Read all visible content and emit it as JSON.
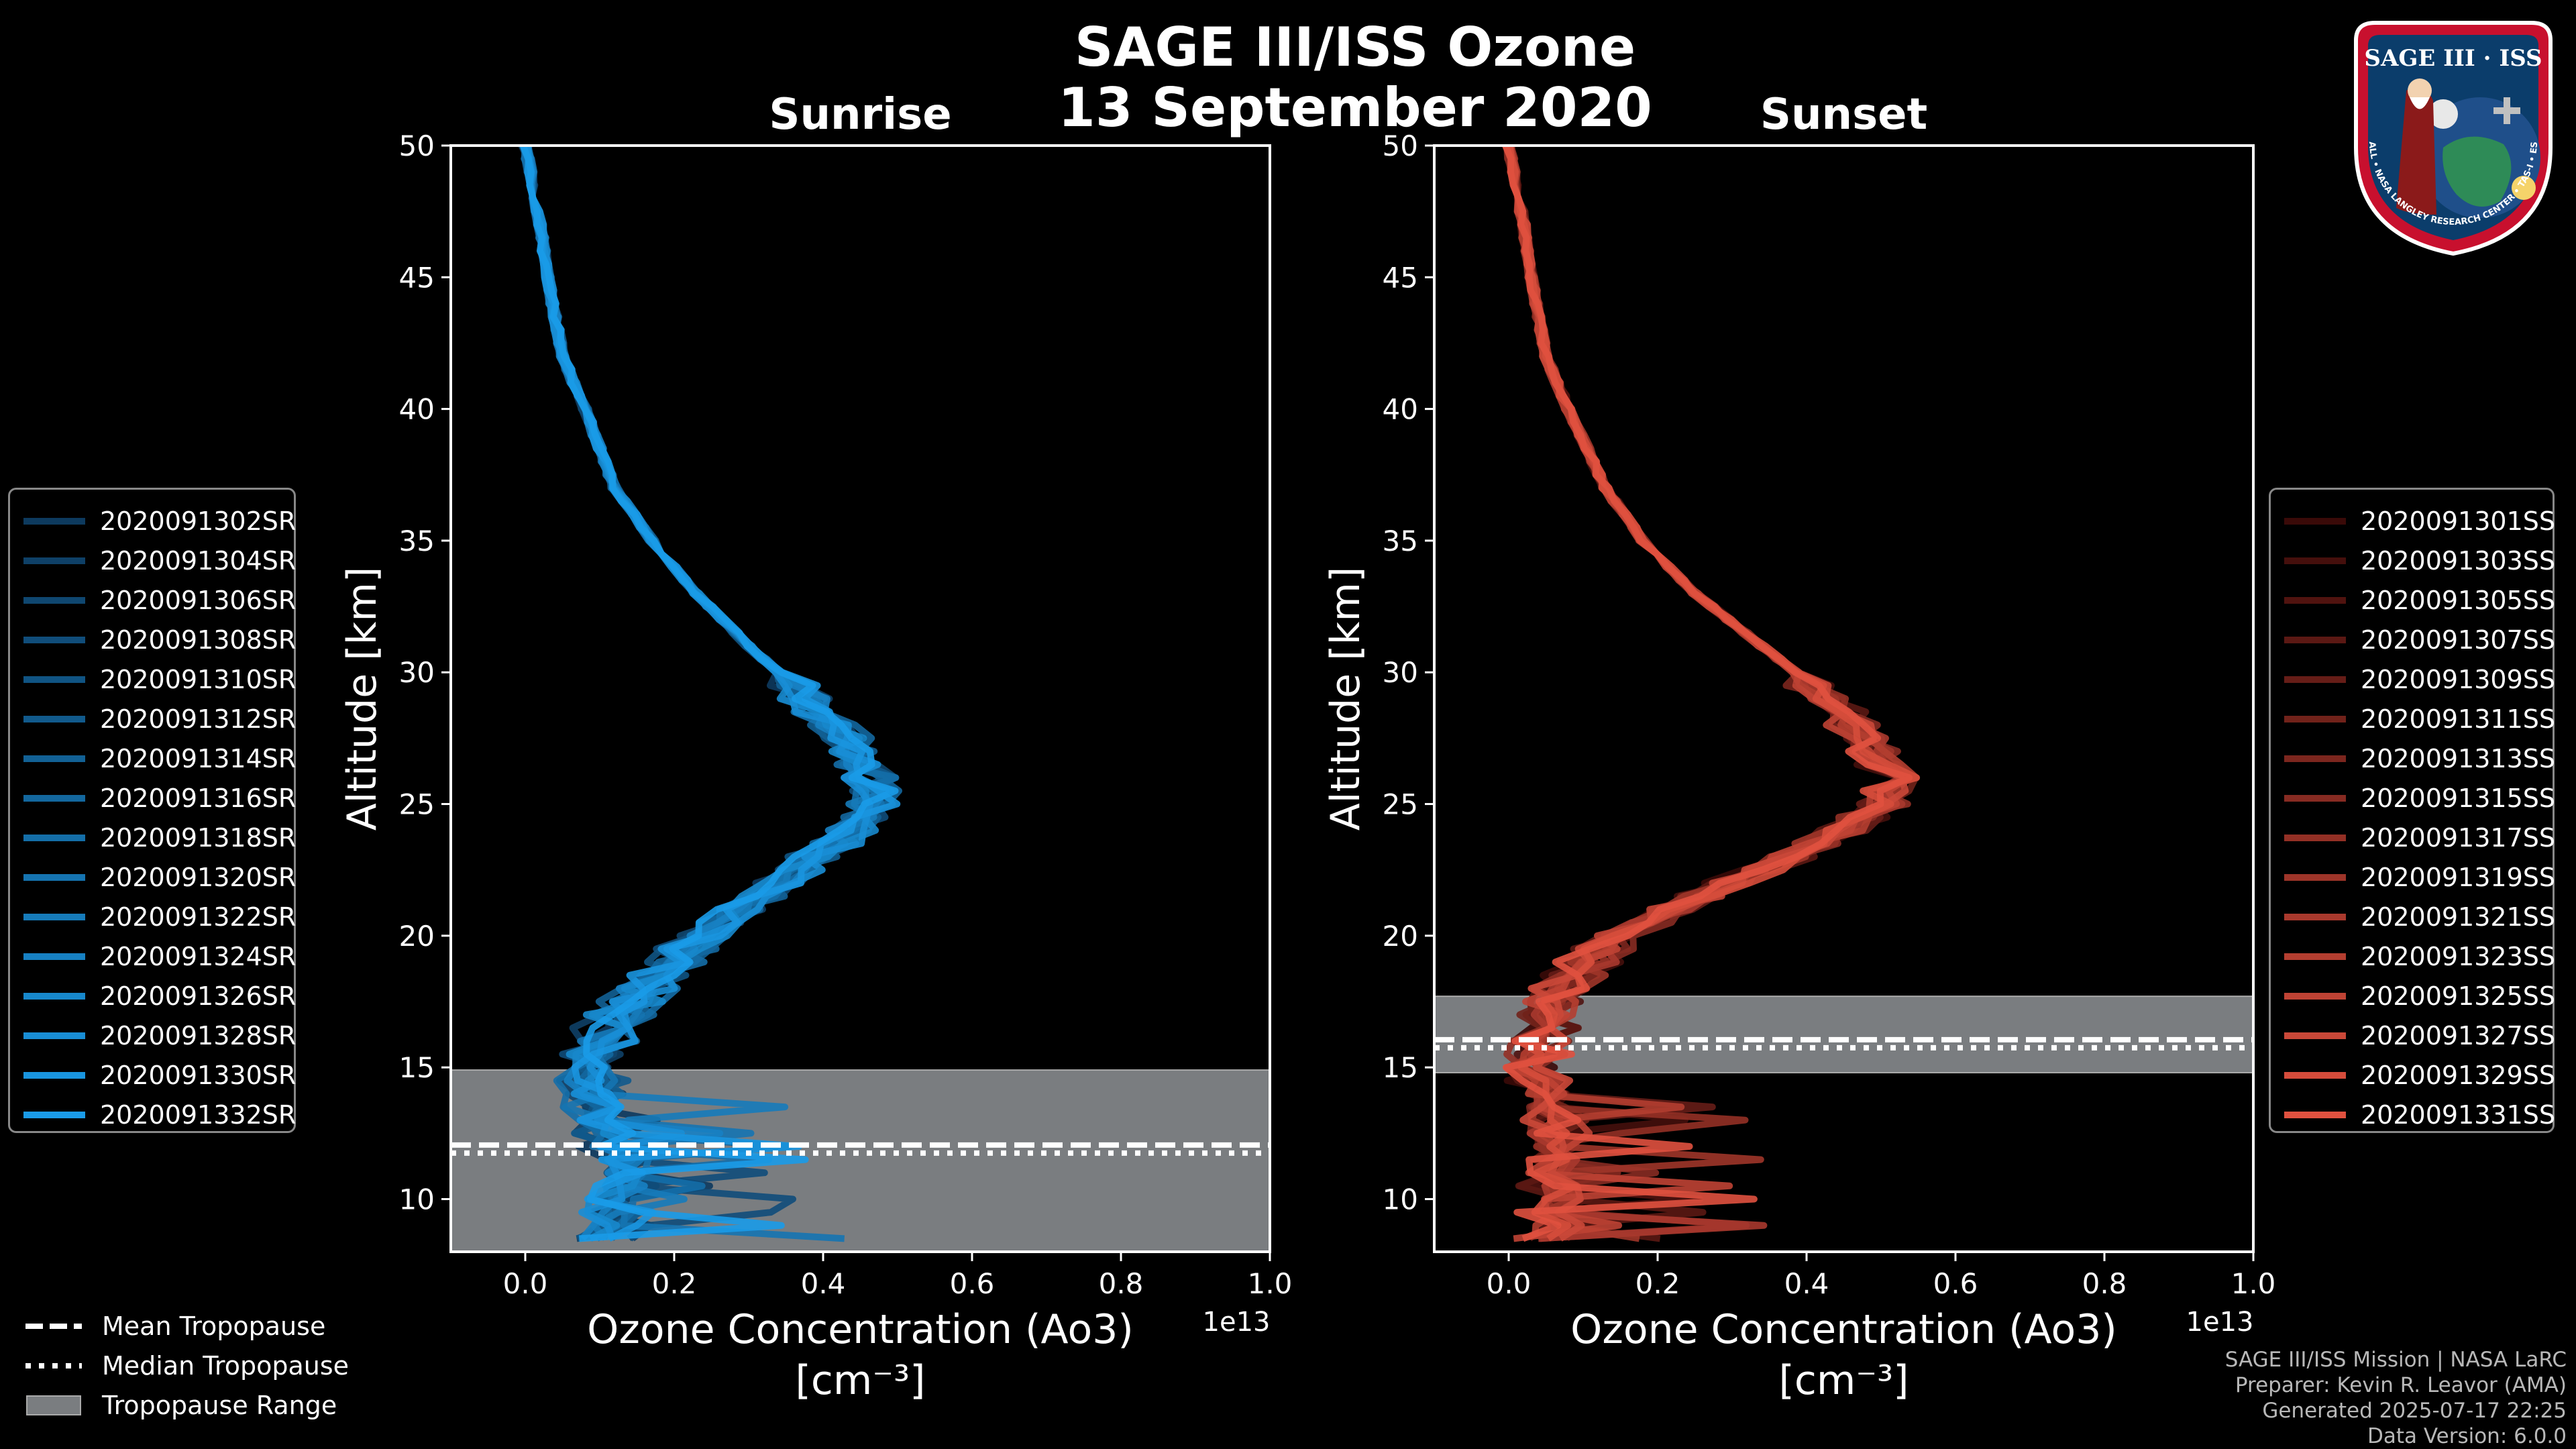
{
  "figure": {
    "title_line1": "SAGE III/ISS Ozone",
    "title_line2": "13 September 2020",
    "credits": [
      "SAGE III/ISS Mission | NASA LaRC",
      "Preparer: Kevin R. Leavor (AMA)",
      "Generated 2025-07-17 22:25",
      "Data Version: 6.0.0"
    ],
    "badge": {
      "title": "SAGE III · ISS",
      "ring_text": "BALL • NASA LANGLEY RESEARCH CENTER • TAS-I • ESA",
      "colors": {
        "ring": "#c8102e",
        "field": "#0b3d6b",
        "planet": "#2e8b57"
      }
    },
    "bottom_legend": [
      {
        "label": "Mean Tropopause",
        "style": "dashed"
      },
      {
        "label": "Median Tropopause",
        "style": "dotted"
      },
      {
        "label": "Tropopause Range",
        "style": "patch"
      }
    ]
  },
  "chart_data": [
    {
      "type": "line",
      "title": "Sunrise",
      "xlabel": "Ozone Concentration (Ao3)",
      "xunit": "[cm⁻³]",
      "xscale_label": "1e13",
      "ylabel": "Altitude [km]",
      "xlim": [
        -0.1,
        1.0
      ],
      "ylim": [
        8,
        50
      ],
      "xticks": [
        0.0,
        0.2,
        0.4,
        0.6,
        0.8,
        1.0
      ],
      "xtick_labels": [
        "0.0",
        "0.2",
        "0.4",
        "0.6",
        "0.8",
        "1.0"
      ],
      "yticks": [
        10,
        15,
        20,
        25,
        30,
        35,
        40,
        45,
        50
      ],
      "ytick_labels": [
        "10",
        "15",
        "20",
        "25",
        "30",
        "35",
        "40",
        "45",
        "50"
      ],
      "tropopause": {
        "mean": 11.9,
        "median": 11.9,
        "range": [
          8.0,
          14.9
        ]
      },
      "color_dark": "#0d3a5e",
      "color_light": "#1a9be8",
      "series": [
        {
          "name": "2020091302SR"
        },
        {
          "name": "2020091304SR"
        },
        {
          "name": "2020091306SR"
        },
        {
          "name": "2020091308SR"
        },
        {
          "name": "2020091310SR"
        },
        {
          "name": "2020091312SR"
        },
        {
          "name": "2020091314SR"
        },
        {
          "name": "2020091316SR"
        },
        {
          "name": "2020091318SR"
        },
        {
          "name": "2020091320SR"
        },
        {
          "name": "2020091322SR"
        },
        {
          "name": "2020091324SR"
        },
        {
          "name": "2020091326SR"
        },
        {
          "name": "2020091328SR"
        },
        {
          "name": "2020091330SR"
        },
        {
          "name": "2020091332SR"
        }
      ],
      "base_profile": {
        "altitude": [
          50,
          47,
          45,
          42,
          40,
          37,
          35,
          33,
          31,
          29,
          27.5,
          26,
          25,
          24,
          23,
          22,
          21,
          20,
          19,
          18,
          17,
          16,
          15,
          14,
          13,
          12,
          11,
          10,
          9,
          8.3
        ],
        "ozone": [
          0.0,
          0.02,
          0.03,
          0.05,
          0.08,
          0.12,
          0.17,
          0.23,
          0.3,
          0.38,
          0.43,
          0.46,
          0.47,
          0.44,
          0.39,
          0.34,
          0.29,
          0.24,
          0.2,
          0.16,
          0.13,
          0.1,
          0.08,
          0.09,
          0.1,
          0.12,
          0.14,
          0.13,
          0.12,
          0.11
        ]
      }
    },
    {
      "type": "line",
      "title": "Sunset",
      "xlabel": "Ozone Concentration (Ao3)",
      "xunit": "[cm⁻³]",
      "xscale_label": "1e13",
      "ylabel": "Altitude [km]",
      "xlim": [
        -0.1,
        1.0
      ],
      "ylim": [
        8,
        50
      ],
      "xticks": [
        0.0,
        0.2,
        0.4,
        0.6,
        0.8,
        1.0
      ],
      "xtick_labels": [
        "0.0",
        "0.2",
        "0.4",
        "0.6",
        "0.8",
        "1.0"
      ],
      "yticks": [
        10,
        15,
        20,
        25,
        30,
        35,
        40,
        45,
        50
      ],
      "ytick_labels": [
        "10",
        "15",
        "20",
        "25",
        "30",
        "35",
        "40",
        "45",
        "50"
      ],
      "tropopause": {
        "mean": 15.9,
        "median": 15.9,
        "range": [
          14.8,
          17.7
        ]
      },
      "color_dark": "#3a0a08",
      "color_light": "#e0513f",
      "series": [
        {
          "name": "2020091301SS"
        },
        {
          "name": "2020091303SS"
        },
        {
          "name": "2020091305SS"
        },
        {
          "name": "2020091307SS"
        },
        {
          "name": "2020091309SS"
        },
        {
          "name": "2020091311SS"
        },
        {
          "name": "2020091313SS"
        },
        {
          "name": "2020091315SS"
        },
        {
          "name": "2020091317SS"
        },
        {
          "name": "2020091319SS"
        },
        {
          "name": "2020091321SS"
        },
        {
          "name": "2020091323SS"
        },
        {
          "name": "2020091325SS"
        },
        {
          "name": "2020091327SS"
        },
        {
          "name": "2020091329SS"
        },
        {
          "name": "2020091331SS"
        }
      ],
      "base_profile": {
        "altitude": [
          50,
          47,
          45,
          42,
          40,
          37,
          35,
          33,
          31,
          29,
          27.5,
          26,
          25,
          24,
          23,
          22,
          21,
          20,
          19,
          18,
          17,
          16,
          15,
          14,
          13,
          12,
          11,
          10,
          9,
          8.3
        ],
        "ozone": [
          0.0,
          0.02,
          0.03,
          0.05,
          0.08,
          0.13,
          0.18,
          0.25,
          0.34,
          0.43,
          0.48,
          0.51,
          0.5,
          0.45,
          0.38,
          0.3,
          0.22,
          0.15,
          0.1,
          0.07,
          0.05,
          0.04,
          0.04,
          0.05,
          0.05,
          0.06,
          0.06,
          0.06,
          0.06,
          0.05
        ]
      }
    }
  ]
}
